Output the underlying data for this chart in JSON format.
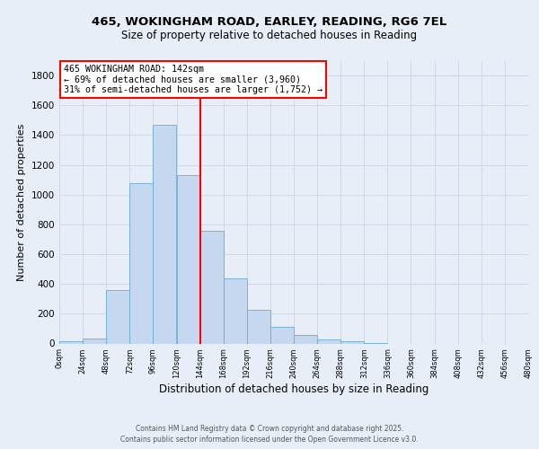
{
  "title1": "465, WOKINGHAM ROAD, EARLEY, READING, RG6 7EL",
  "title2": "Size of property relative to detached houses in Reading",
  "xlabel": "Distribution of detached houses by size in Reading",
  "ylabel": "Number of detached properties",
  "footnote1": "Contains HM Land Registry data © Crown copyright and database right 2025.",
  "footnote2": "Contains public sector information licensed under the Open Government Licence v3.0.",
  "bin_edges": [
    0,
    24,
    48,
    72,
    96,
    120,
    144,
    168,
    192,
    216,
    240,
    264,
    288,
    312,
    336,
    360,
    384,
    408,
    432,
    456,
    480
  ],
  "bin_values": [
    15,
    35,
    360,
    1075,
    1470,
    1130,
    755,
    435,
    225,
    110,
    55,
    25,
    15,
    5,
    0,
    0,
    0,
    0,
    0,
    0
  ],
  "bar_color": "#c5d8f0",
  "bar_edge_color": "#6aaad4",
  "vline_x": 144,
  "vline_color": "red",
  "annotation_line1": "465 WOKINGHAM ROAD: 142sqm",
  "annotation_line2": "← 69% of detached houses are smaller (3,960)",
  "annotation_line3": "31% of semi-detached houses are larger (1,752) →",
  "ylim": [
    0,
    1900
  ],
  "xlim": [
    0,
    480
  ],
  "grid_color": "#d0d8e8",
  "bg_color": "#e8eef8",
  "plot_bg_color": "#e8eef8",
  "title1_fontsize": 9.5,
  "title2_fontsize": 8.5,
  "xlabel_fontsize": 8.5,
  "ylabel_fontsize": 8.0,
  "footnote_fontsize": 5.5,
  "annotation_fontsize": 7.2,
  "xtick_fontsize": 6.0,
  "ytick_fontsize": 7.5
}
